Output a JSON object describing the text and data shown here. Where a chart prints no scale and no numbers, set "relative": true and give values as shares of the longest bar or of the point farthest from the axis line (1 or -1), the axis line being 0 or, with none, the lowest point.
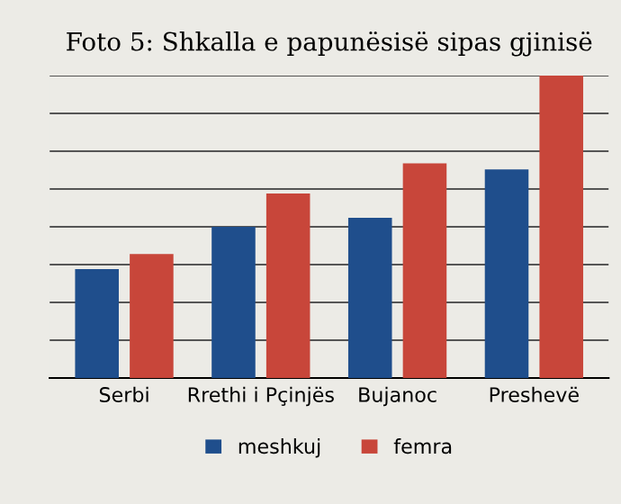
{
  "chart_data": {
    "type": "bar",
    "title": "Foto 5: Shkalla e papunësisë sipas gjinisë",
    "categories": [
      "Serbi",
      "Rrethi i Pçinjës",
      "Bujanoc",
      "Preshevë"
    ],
    "relative": true,
    "series": [
      {
        "name": "meshkuj",
        "color": "#1f4e8c",
        "values": [
          0.36,
          0.5,
          0.53,
          0.69
        ]
      },
      {
        "name": "femra",
        "color": "#c8463a",
        "values": [
          0.41,
          0.61,
          0.71,
          1.0
        ]
      }
    ],
    "grid": "y",
    "legend": "bottom"
  }
}
